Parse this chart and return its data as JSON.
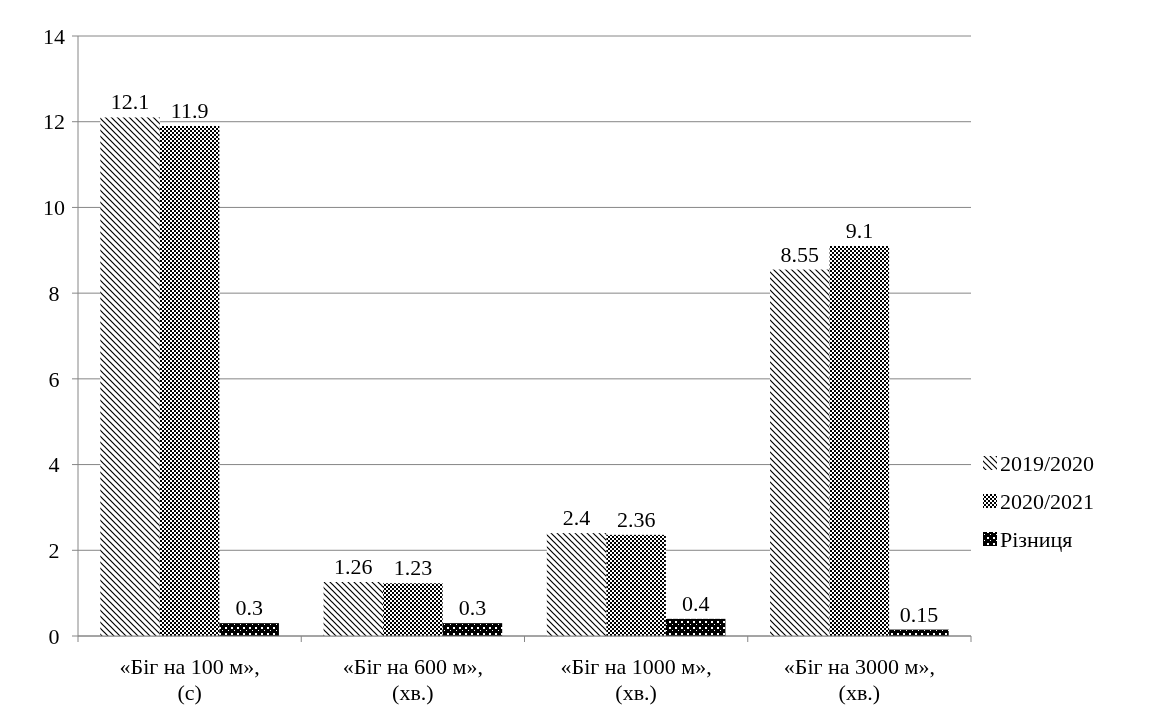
{
  "chart_data": {
    "type": "bar",
    "categories": [
      "«Біг на 100 м», (с)",
      "«Біг на 600 м», (хв.)",
      "«Біг на 1000 м», (хв.)",
      "«Біг на 3000 м», (хв.)"
    ],
    "series": [
      {
        "name": "2019/2020",
        "color": "#000000",
        "values": [
          12.1,
          1.26,
          2.4,
          8.55
        ]
      },
      {
        "name": "2020/2021",
        "color": "#000000",
        "values": [
          11.9,
          1.23,
          2.36,
          9.1
        ]
      },
      {
        "name": "Різниця",
        "color": "#000000",
        "values": [
          0.3,
          0.3,
          0.4,
          0.15
        ]
      }
    ],
    "ylim": [
      0,
      14
    ],
    "yticks": [
      0,
      2,
      4,
      6,
      8,
      10,
      12,
      14
    ],
    "grid": "y",
    "legend": "right",
    "data_labels": true
  }
}
